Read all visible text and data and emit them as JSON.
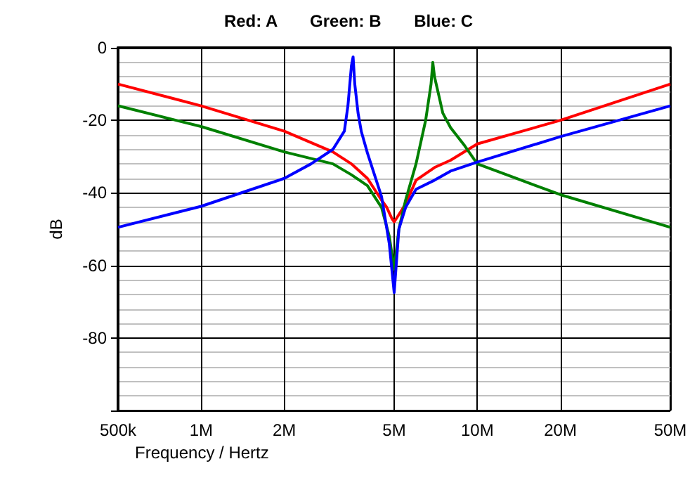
{
  "chart_data": {
    "type": "line",
    "title": "Red: A       Green: B       Blue: C",
    "xlabel": "Frequency / Hertz",
    "ylabel": "dB",
    "log": "x",
    "grid": true,
    "marker": "none",
    "line_style": "solid",
    "xlim": [
      500000,
      50000000
    ],
    "xticks": [
      {
        "value": 500000,
        "label": "500k"
      },
      {
        "value": 1000000,
        "label": "1M"
      },
      {
        "value": 2000000,
        "label": "2M"
      },
      {
        "value": 5000000,
        "label": "5M"
      },
      {
        "value": 10000000,
        "label": "10M"
      },
      {
        "value": 20000000,
        "label": "20M"
      },
      {
        "value": 50000000,
        "label": "50M"
      }
    ],
    "ylim": [
      -100,
      0
    ],
    "yticks": [
      {
        "value": -100,
        "label": null
      },
      -80,
      -60,
      -40,
      -20,
      0
    ],
    "series": [
      {
        "color": "#ff0000",
        "x": [
          500000,
          1000000,
          2000000,
          3000000,
          3500000,
          4000000,
          4500000,
          4700000,
          4900000,
          5000000,
          5100000,
          5300000,
          5500000,
          6000000,
          7000000,
          8000000,
          10000000,
          20000000,
          50000000
        ],
        "values": [
          -10,
          -16,
          -23,
          -28.7,
          -32,
          -36,
          -42,
          -44,
          -47,
          -48,
          -47,
          -45,
          -43,
          -36.5,
          -33,
          -31,
          -26.5,
          -20,
          -10
        ]
      },
      {
        "color": "#008000",
        "x": [
          500000,
          1000000,
          2000000,
          3000000,
          3500000,
          4000000,
          4500000,
          4800000,
          5000000,
          5200000,
          5500000,
          6000000,
          6500000,
          6800000,
          6900000,
          7000000,
          7300000,
          7500000,
          8000000,
          9000000,
          10000000,
          20000000,
          50000000
        ],
        "values": [
          -16,
          -21.7,
          -28.7,
          -32,
          -35,
          -38,
          -44,
          -52,
          -61,
          -50,
          -42,
          -32,
          -20,
          -10,
          -4,
          -8,
          -14,
          -18,
          -22,
          -27,
          -32,
          -40.5,
          -49.5
        ]
      },
      {
        "color": "#0000ff",
        "x": [
          500000,
          1000000,
          2000000,
          2500000,
          3000000,
          3300000,
          3400000,
          3500000,
          3550000,
          3600000,
          3700000,
          3800000,
          4000000,
          4500000,
          4800000,
          5000000,
          5200000,
          5500000,
          6000000,
          7000000,
          8000000,
          10000000,
          20000000,
          50000000
        ],
        "values": [
          -49.5,
          -43.7,
          -36,
          -32,
          -28,
          -23,
          -16,
          -5,
          -2.5,
          -10,
          -18,
          -23,
          -29,
          -41,
          -54,
          -67.5,
          -50,
          -44,
          -39,
          -36.5,
          -34,
          -31.5,
          -24.5,
          -16
        ]
      }
    ]
  }
}
